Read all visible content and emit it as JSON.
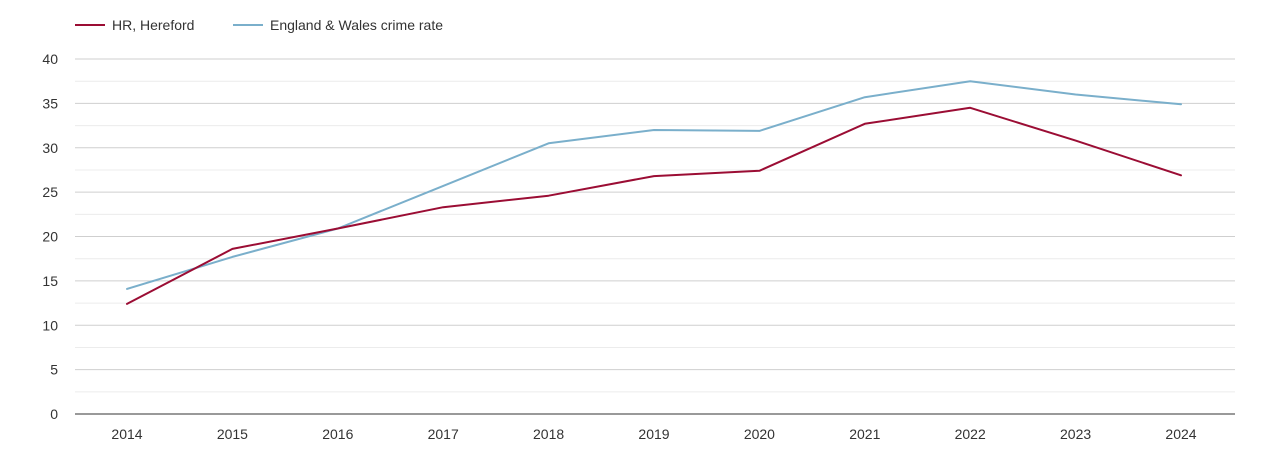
{
  "chart_data": {
    "type": "line",
    "title": "",
    "xlabel": "",
    "ylabel": "",
    "categories": [
      "2014",
      "2015",
      "2016",
      "2017",
      "2018",
      "2019",
      "2020",
      "2021",
      "2022",
      "2023",
      "2024"
    ],
    "series": [
      {
        "name": "HR, Hereford",
        "color": "#9b0d34",
        "values": [
          12.4,
          18.6,
          20.9,
          23.3,
          24.6,
          26.8,
          27.4,
          32.7,
          34.5,
          30.8,
          26.9
        ]
      },
      {
        "name": "England & Wales crime rate",
        "color": "#7aafcb",
        "values": [
          14.1,
          17.7,
          20.9,
          25.7,
          30.5,
          32.0,
          31.9,
          35.7,
          37.5,
          36.0,
          34.9
        ]
      }
    ],
    "ylim": [
      0,
      40
    ],
    "y_ticks": [
      0,
      5,
      10,
      15,
      20,
      25,
      30,
      35,
      40
    ],
    "y_minor_gridlines": true,
    "grid": true,
    "legend_position": "top-left"
  }
}
